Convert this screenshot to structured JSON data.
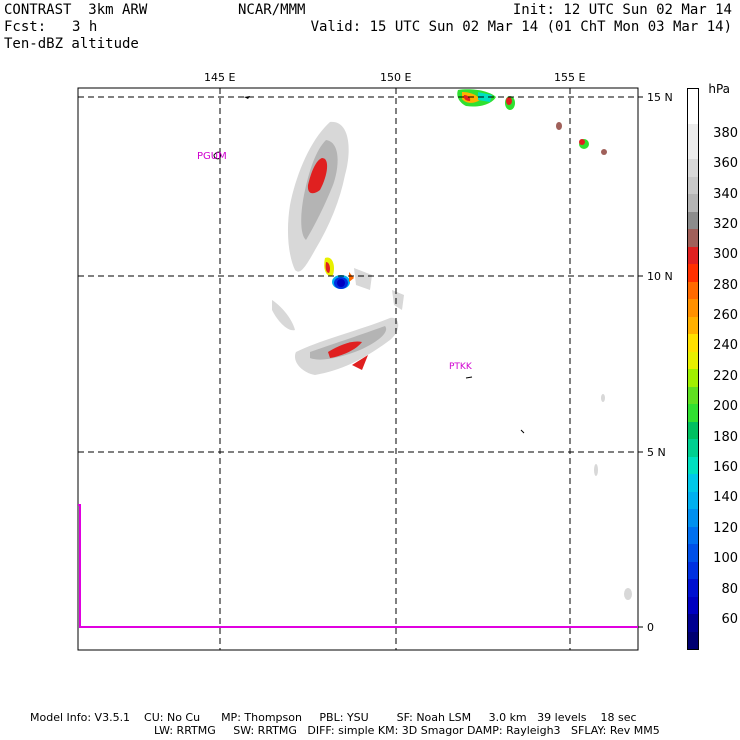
{
  "header": {
    "title": "CONTRAST  3km ARW",
    "fcst_label": "Fcst:",
    "fcst_value": "3 h",
    "field": "Ten-dBZ altitude",
    "org": "NCAR/MMM",
    "init": "Init: 12 UTC Sun 02 Mar 14",
    "valid": "Valid: 15 UTC Sun 02 Mar 14 (01 ChT Mon 03 Mar 14)"
  },
  "map": {
    "lon_labels": [
      "145 E",
      "150 E",
      "155 E"
    ],
    "lat_labels": [
      "15 N",
      "10 N",
      "5 N",
      "0"
    ],
    "stations": [
      "PGUM",
      "PTKK"
    ]
  },
  "colorbar": {
    "unit": "hPa",
    "levels": [
      {
        "label": "380",
        "color": "#ececec"
      },
      {
        "label": "360",
        "color": "#d8d8d8"
      },
      {
        "label": "340",
        "color": "#b4b4b4"
      },
      {
        "label": "320",
        "color": "#8c8c8c"
      },
      {
        "label": "300",
        "color": "#a0605a"
      },
      {
        "label": "280",
        "color": "#e02020"
      },
      {
        "label": "260",
        "color": "#ff6a00"
      },
      {
        "label": "240",
        "color": "#ffb000"
      },
      {
        "label": "220",
        "color": "#e8f000"
      },
      {
        "label": "200",
        "color": "#a0f000"
      },
      {
        "label": "180",
        "color": "#30e030"
      },
      {
        "label": "160",
        "color": "#00c060"
      },
      {
        "label": "140",
        "color": "#00e0c0"
      },
      {
        "label": "120",
        "color": "#00b0f0"
      },
      {
        "label": "100",
        "color": "#0070f0"
      },
      {
        "label": "80",
        "color": "#0030e0"
      },
      {
        "label": "60",
        "color": "#0000c0"
      }
    ],
    "extra_colors": [
      "#ffffff",
      "#000090",
      "#000070"
    ]
  },
  "footer": {
    "line1": "Model Info: V3.5.1    CU: No Cu      MP: Thompson     PBL: YSU        SF: Noah LSM     3.0 km   39 levels    18 sec",
    "line2": "LW: RRTMG     SW: RRTMG   DIFF: simple KM: 3D Smagor DAMP: Rayleigh3   SFLAY: Rev MM5"
  }
}
